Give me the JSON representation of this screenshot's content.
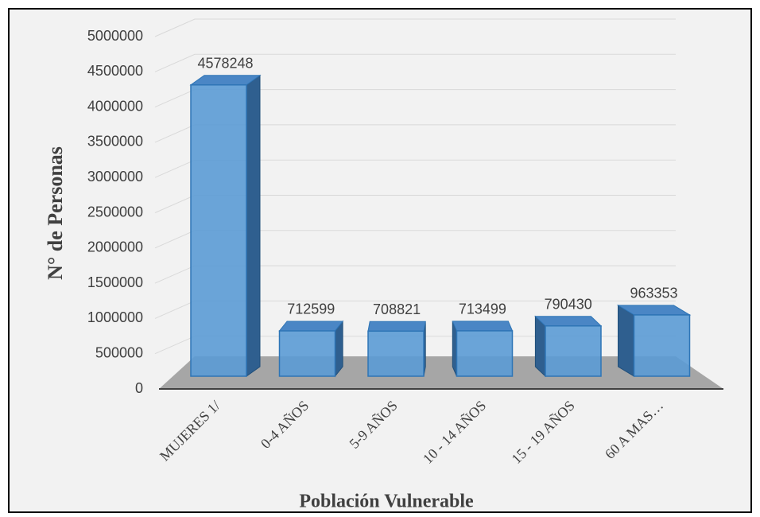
{
  "chart_data": {
    "type": "bar3d",
    "x_label": "Población Vulnerable",
    "y_label": "N° de Personas",
    "categories": [
      "MUJERES 1/",
      "0-4 AÑOS",
      "5-9 AÑOS",
      "10 - 14 AÑOS",
      "15 - 19 AÑOS",
      "60 A MAS…"
    ],
    "values": [
      4578248,
      712599,
      708821,
      713499,
      790430,
      963353
    ],
    "color": "#5b9bd5",
    "ylim": [
      0,
      5000000
    ],
    "yticks": [
      0,
      500000,
      1000000,
      1500000,
      2000000,
      2500000,
      3000000,
      3500000,
      4000000,
      4500000,
      5000000
    ],
    "grid": true
  }
}
